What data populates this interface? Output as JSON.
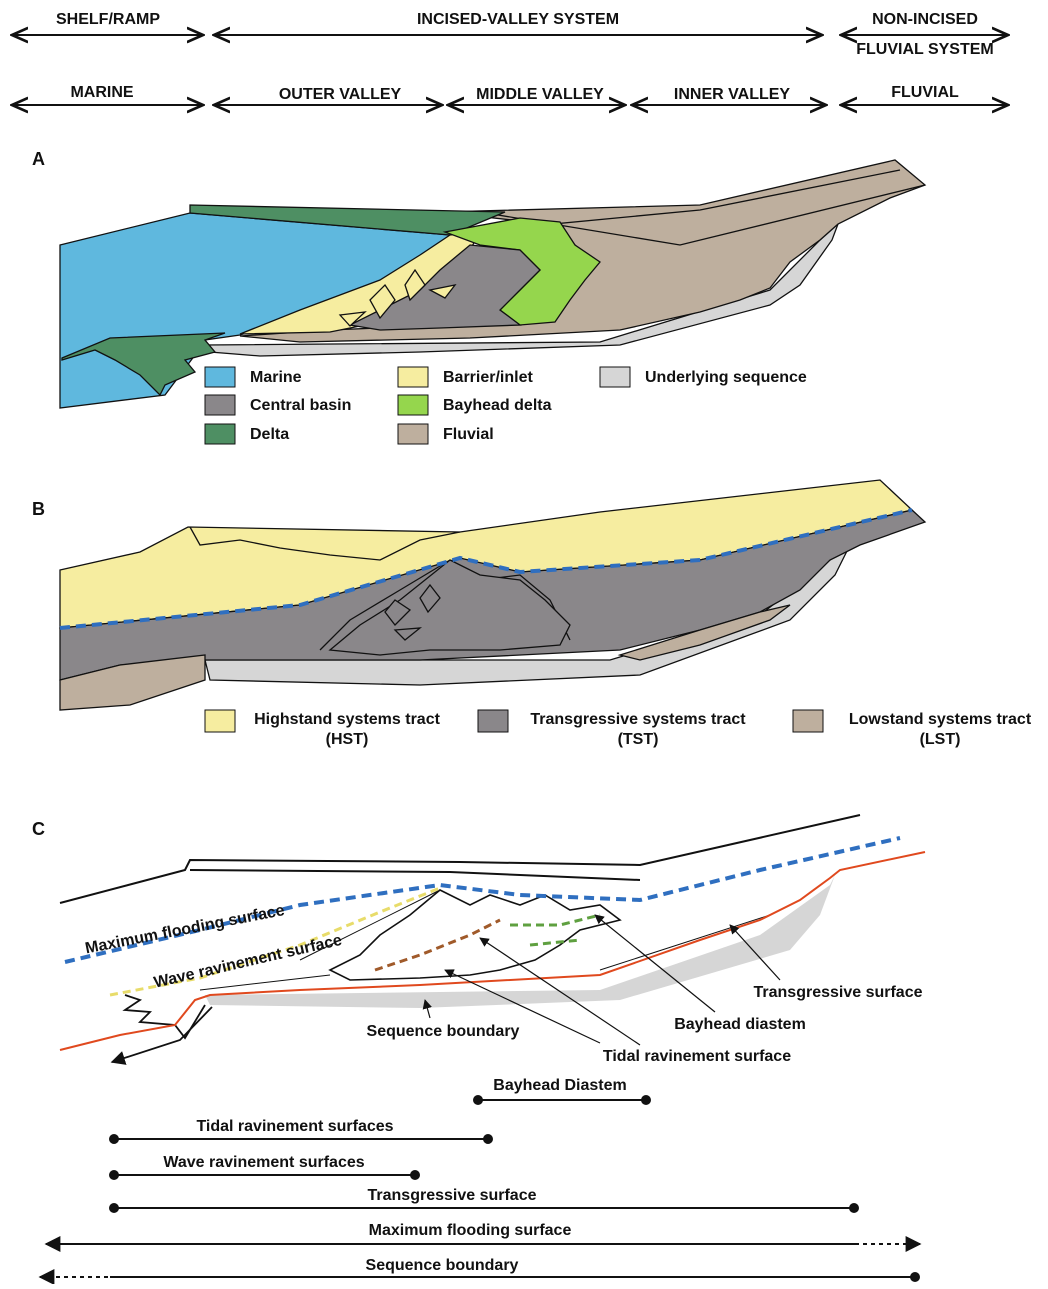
{
  "header": {
    "zones": [
      "SHELF/RAMP",
      "INCISED-VALLEY SYSTEM",
      "NON-INCISED",
      "FLUVIAL SYSTEM"
    ],
    "subzones": [
      "MARINE",
      "OUTER VALLEY",
      "MIDDLE VALLEY",
      "INNER VALLEY",
      "FLUVIAL"
    ]
  },
  "panel_a": {
    "label": "A",
    "legend": [
      "Marine",
      "Central basin",
      "Delta",
      "Barrier/inlet",
      "Bayhead delta",
      "Fluvial",
      "Underlying sequence"
    ]
  },
  "panel_b": {
    "label": "B",
    "legend": [
      [
        "Highstand systems tract",
        "(HST)"
      ],
      [
        "Transgressive systems tract",
        "(TST)"
      ],
      [
        "Lowstand systems tract",
        "(LST)"
      ]
    ]
  },
  "panel_c": {
    "label": "C",
    "annotations": [
      "Maximum flooding surface",
      "Wave  ravinement surface",
      "Transgressive surface",
      "Bayhead diastem",
      "Sequence boundary",
      "Tidal  ravinement surface"
    ]
  },
  "ranges": [
    "Bayhead Diastem",
    "Tidal  ravinement surfaces",
    "Wave  ravinement surfaces",
    "Transgressive surface",
    "Maximum flooding surface",
    "Sequence boundary"
  ]
}
